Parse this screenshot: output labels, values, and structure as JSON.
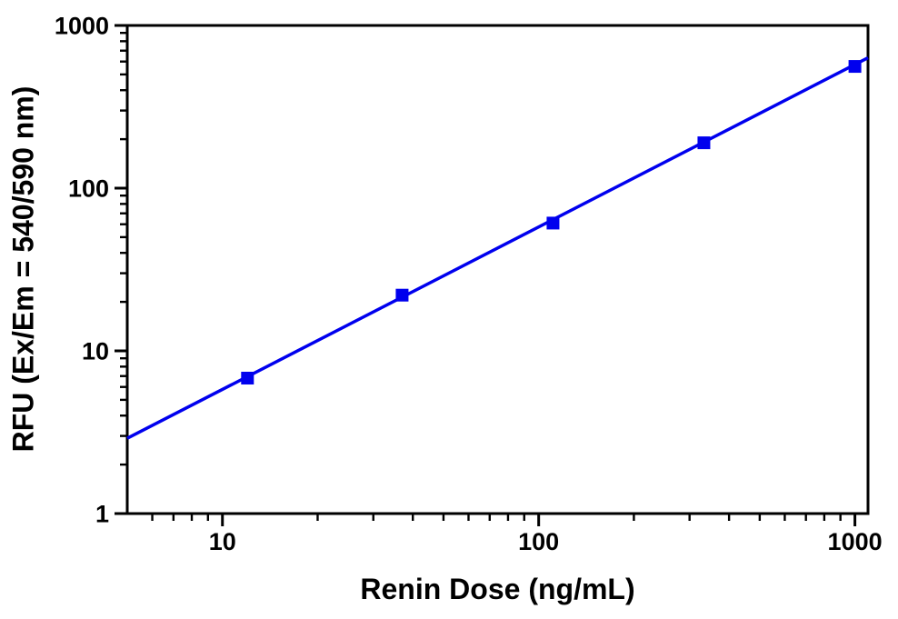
{
  "chart_data": {
    "type": "scatter",
    "title": "",
    "xlabel": "Renin Dose (ng/mL)",
    "ylabel": "RFU (Ex/Em = 540/590 nm)",
    "xscale": "log",
    "yscale": "log",
    "xlim": [
      5,
      1100
    ],
    "ylim": [
      1,
      1000
    ],
    "xticks": [
      "10",
      "100",
      "1000"
    ],
    "yticks": [
      "1",
      "10",
      "100",
      "1000"
    ],
    "grid": false,
    "legend": null,
    "axis_color": "#000000",
    "series": [
      {
        "marker": "square",
        "color": "#0000EE",
        "x": [
          12,
          37,
          111,
          333,
          1000
        ],
        "y": [
          6.8,
          22,
          61,
          190,
          560
        ]
      }
    ],
    "fit_line": {
      "color": "#0000EE",
      "x": [
        5,
        1100
      ],
      "y": [
        2.9,
        633
      ]
    }
  }
}
